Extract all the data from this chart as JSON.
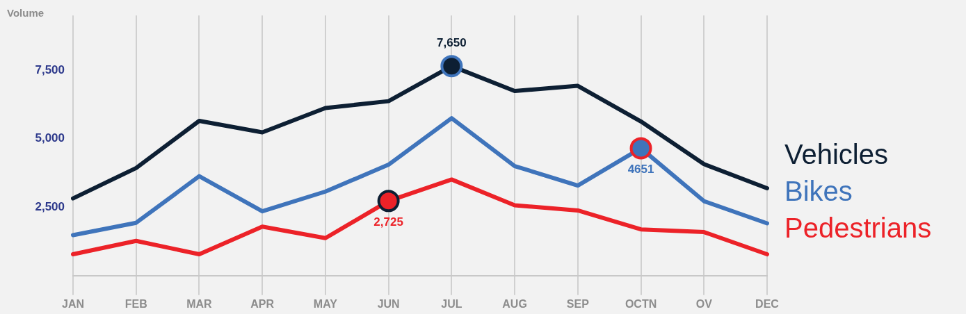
{
  "chart_data": {
    "type": "line",
    "ylabel": "Volume",
    "categories": [
      "JAN",
      "FEB",
      "MAR",
      "APR",
      "MAY",
      "JUN",
      "JUL",
      "AUG",
      "SEP",
      "OCTN",
      "OV",
      "DEC"
    ],
    "series": [
      {
        "name": "Vehicles",
        "color": "#0d1f33",
        "values": [
          2820,
          3930,
          5650,
          5230,
          6120,
          6370,
          7650,
          6740,
          6930,
          5630,
          4070,
          3190
        ],
        "value_labels": [
          null,
          null,
          null,
          null,
          null,
          null,
          "7,650",
          null,
          null,
          null,
          null,
          null
        ]
      },
      {
        "name": "Bikes",
        "color": "#3f74bb",
        "values": [
          1480,
          1930,
          3630,
          2350,
          3070,
          4050,
          5750,
          4000,
          3290,
          4651,
          2720,
          1910
        ],
        "value_labels": [
          null,
          null,
          null,
          null,
          null,
          null,
          null,
          null,
          null,
          "4651",
          null,
          null
        ]
      },
      {
        "name": "Pedestrians",
        "color": "#ec2228",
        "values": [
          780,
          1270,
          780,
          1790,
          1370,
          2725,
          3510,
          2570,
          2380,
          1690,
          1590,
          780
        ],
        "value_labels": [
          null,
          null,
          null,
          null,
          null,
          "2,725",
          null,
          null,
          null,
          null,
          null,
          null
        ]
      }
    ],
    "ylim": [
      0,
      9500
    ],
    "yticks": [
      {
        "value": 2500,
        "label": "2,500"
      },
      {
        "value": 5000,
        "label": "5,000"
      },
      {
        "value": 7500,
        "label": "7,500"
      }
    ],
    "grid": "x",
    "legend": "right",
    "marker": "none",
    "line_style": "solid"
  }
}
